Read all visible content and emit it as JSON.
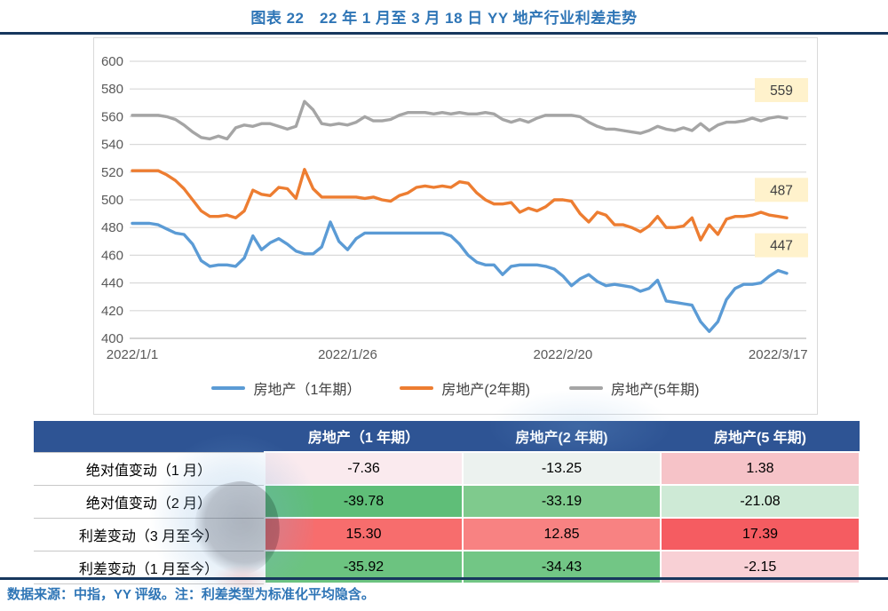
{
  "page": {
    "title": "图表 22　22 年 1 月至 3 月 18 日 YY 地产行业利差走势",
    "source_note": "数据来源：中指，YY 评级。注：利差类型为标准化平均隐含。"
  },
  "colors": {
    "title_blue": "#2E75B6",
    "rule_navy": "#17375D",
    "table_header_bg": "#2E5494",
    "table_header_text": "#FFFFFF",
    "axis_text": "#595959",
    "gridline": "#D9D9D9",
    "end_label_bg": "#FFF2CC",
    "end_label_text": "#404040"
  },
  "chart_data": {
    "type": "line",
    "title": "",
    "xlabel": "",
    "ylabel": "",
    "ylim": [
      400,
      600
    ],
    "ytick_step": 20,
    "grid": true,
    "legend_position": "bottom",
    "x_is_daily_dates": "2022/1/1 to 2022/3/18",
    "x_tick_labels": [
      "2022/1/1",
      "2022/1/26",
      "2022/2/20",
      "2022/3/17"
    ],
    "x_tick_days": [
      0,
      25,
      50,
      75
    ],
    "days_total": 76,
    "end_point_labels": [
      447,
      487,
      559
    ],
    "series": [
      {
        "name": "房地产（1年期）",
        "color": "#5B9BD5",
        "end_value": 447,
        "values": [
          483,
          483,
          483,
          482,
          479,
          476,
          475,
          468,
          456,
          452,
          453,
          453,
          452,
          458,
          474,
          464,
          469,
          472,
          468,
          463,
          461,
          461,
          466,
          484,
          470,
          464,
          472,
          476,
          476,
          476,
          476,
          476,
          476,
          476,
          476,
          476,
          476,
          474,
          468,
          460,
          455,
          453,
          453,
          446,
          452,
          453,
          453,
          453,
          452,
          450,
          445,
          438,
          443,
          446,
          441,
          438,
          439,
          438,
          437,
          434,
          436,
          442,
          427,
          426,
          425,
          424,
          412,
          405,
          412,
          428,
          436,
          439,
          439,
          440,
          445,
          449,
          447
        ]
      },
      {
        "name": "房地产(2年期)",
        "color": "#ED7D31",
        "end_value": 487,
        "values": [
          521,
          521,
          521,
          521,
          518,
          514,
          508,
          500,
          492,
          488,
          488,
          489,
          487,
          492,
          507,
          504,
          503,
          509,
          508,
          501,
          522,
          508,
          502,
          502,
          502,
          502,
          502,
          501,
          502,
          500,
          499,
          503,
          505,
          509,
          510,
          509,
          510,
          509,
          513,
          512,
          505,
          500,
          497,
          497,
          498,
          491,
          494,
          492,
          495,
          500,
          500,
          499,
          490,
          484,
          491,
          489,
          482,
          482,
          480,
          477,
          481,
          488,
          480,
          480,
          481,
          487,
          471,
          482,
          475,
          486,
          488,
          488,
          489,
          491,
          489,
          488,
          487
        ]
      },
      {
        "name": "房地产(5年期)",
        "color": "#A5A5A5",
        "end_value": 559,
        "values": [
          561,
          561,
          561,
          561,
          560,
          558,
          554,
          549,
          545,
          544,
          546,
          544,
          552,
          554,
          553,
          555,
          555,
          553,
          551,
          553,
          571,
          565,
          555,
          554,
          555,
          554,
          556,
          560,
          557,
          557,
          558,
          561,
          563,
          563,
          563,
          562,
          563,
          562,
          563,
          562,
          562,
          563,
          562,
          558,
          556,
          558,
          556,
          559,
          561,
          561,
          561,
          561,
          560,
          556,
          553,
          551,
          551,
          550,
          549,
          548,
          550,
          553,
          551,
          550,
          552,
          550,
          555,
          550,
          554,
          556,
          556,
          557,
          559,
          557,
          559,
          560,
          559
        ]
      }
    ]
  },
  "table": {
    "header": [
      "",
      "房地产（1 年期）",
      "房地产(2 年期)",
      "房地产(5 年期)"
    ],
    "rows": [
      {
        "label": "绝对值变动（1 月）",
        "values": [
          "-7.36",
          "-13.25",
          "1.38"
        ],
        "cell_colors": [
          "#FAEAEE",
          "#ECF2EF",
          "#F6C3C8"
        ]
      },
      {
        "label": "绝对值变动（2 月）",
        "values": [
          "-39.78",
          "-33.19",
          "-21.08"
        ],
        "cell_colors": [
          "#5FBE78",
          "#7FCA8D",
          "#CEEAD6"
        ]
      },
      {
        "label": "利差变动（3 月至今）",
        "values": [
          "15.30",
          "12.85",
          "17.39"
        ],
        "cell_colors": [
          "#F76D6D",
          "#F88282",
          "#F55C61"
        ]
      },
      {
        "label": "利差变动（1 月至今）",
        "values": [
          "-35.92",
          "-34.43",
          "-2.15"
        ],
        "cell_colors": [
          "#6CC380",
          "#72C685",
          "#F8D0D5"
        ]
      }
    ]
  }
}
